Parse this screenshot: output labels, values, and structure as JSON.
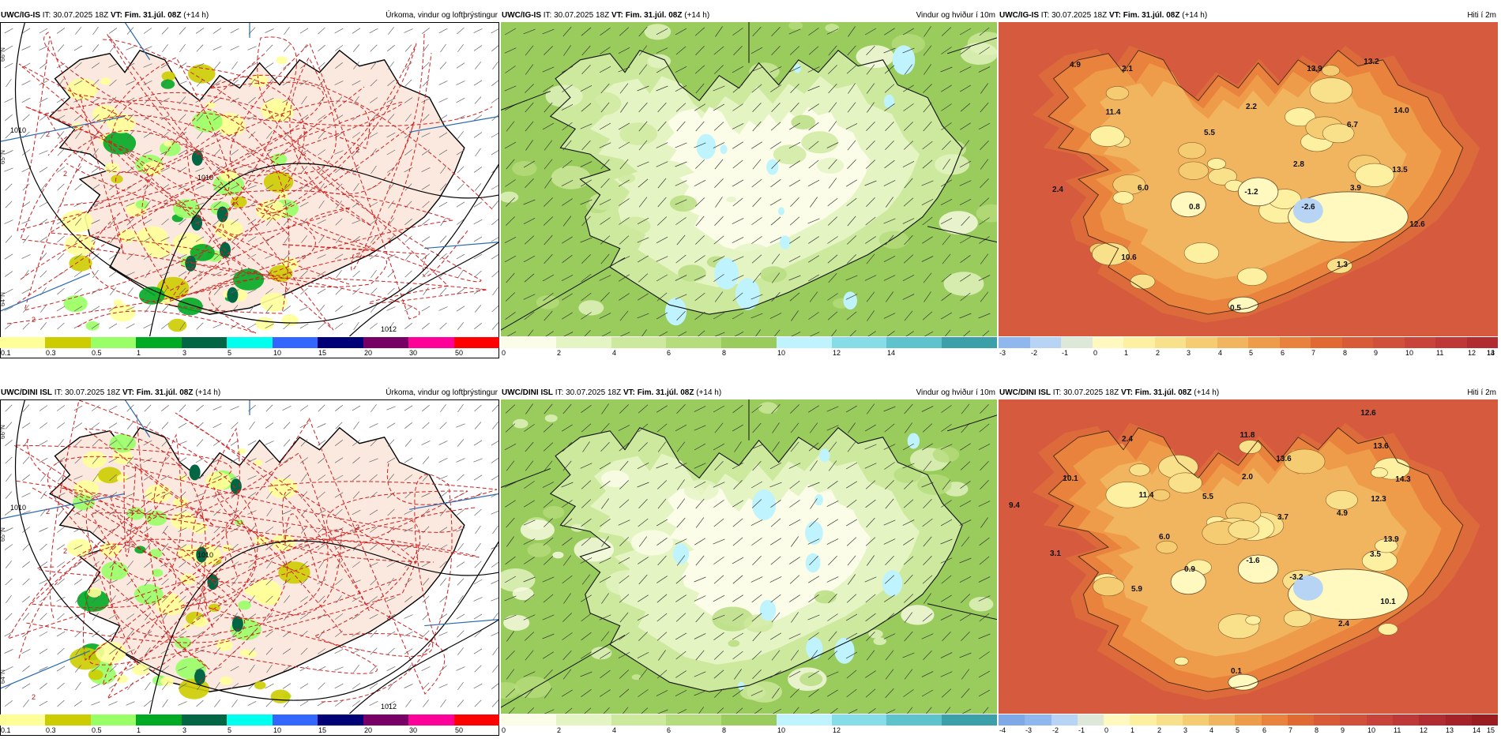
{
  "panels": [
    {
      "id": "top-precip",
      "model": "UWC/IG-IS",
      "it_label": "IT:",
      "it": "30.07.2025 18Z",
      "vt_label": "VT:",
      "vt": "Fim. 31.júl. 08Z",
      "lead": "(+14 h)",
      "title": "Úrkoma, vindur og loftþrýstingur",
      "kind": "precip",
      "colorbar": {
        "colors": [
          "#ffff99",
          "#cccc00",
          "#99ff66",
          "#00aa22",
          "#006644",
          "#00ffee",
          "#3366ff",
          "#000077",
          "#770066",
          "#ff0099",
          "#ff0000"
        ],
        "labels": [
          "0.1",
          "0.3",
          "0.5",
          "1",
          "3",
          "5",
          "10",
          "15",
          "20",
          "30",
          "50"
        ]
      },
      "isobar_labels": [
        "1010",
        "1010",
        "1012"
      ],
      "pressure_change_labels": [
        "2",
        "2",
        "2",
        "2",
        "2"
      ],
      "lat_labels": [
        "66°N",
        "65°N",
        "64°N"
      ]
    },
    {
      "id": "top-wind",
      "model": "UWC/IG-IS",
      "it_label": "IT:",
      "it": "30.07.2025 18Z",
      "vt_label": "VT:",
      "vt": "Fim. 31.júl. 08Z",
      "lead": "(+14 h)",
      "title": "Vindur og hviður í 10m",
      "kind": "wind",
      "colorbar": {
        "colors": [
          "#fbfde8",
          "#e5f4c3",
          "#cde99e",
          "#b5dc7d",
          "#99cc5c",
          "#bff4ff",
          "#86dde8",
          "#5ec3cc",
          "#3ba0a8"
        ],
        "labels": [
          "0",
          "2",
          "4",
          "6",
          "8",
          "10",
          "12",
          "14"
        ]
      }
    },
    {
      "id": "top-temp",
      "model": "UWC/IG-IS",
      "it_label": "IT:",
      "it": "30.07.2025 18Z",
      "vt_label": "VT:",
      "vt": "Fim. 31.júl. 08Z",
      "lead": "(+14 h)",
      "title": "Hiti í 2m",
      "kind": "temp",
      "colorbar": {
        "colors": [
          "#90b8ee",
          "#b7d4f5",
          "#dde8d8",
          "#fff9c0",
          "#fdf0a0",
          "#f9e08a",
          "#f5cc72",
          "#f2b55f",
          "#ee9c4a",
          "#e8823c",
          "#e06a32",
          "#d85a36",
          "#d0503a",
          "#c8443a",
          "#be3838",
          "#b02c30"
        ],
        "labels": [
          "-3",
          "-2",
          "-1",
          "0",
          "1",
          "2",
          "3",
          "4",
          "5",
          "6",
          "7",
          "8",
          "9",
          "10",
          "11",
          "12",
          "13",
          "14"
        ]
      },
      "temps": [
        {
          "v": "4.9"
        },
        {
          "v": "2.1"
        },
        {
          "v": "13.9"
        },
        {
          "v": "13.2"
        },
        {
          "v": "11.4"
        },
        {
          "v": "2.2"
        },
        {
          "v": "14.0"
        },
        {
          "v": "5.5"
        },
        {
          "v": "6.7"
        },
        {
          "v": "2.8"
        },
        {
          "v": "13.5"
        },
        {
          "v": "2.4"
        },
        {
          "v": "6.0"
        },
        {
          "v": "0.8"
        },
        {
          "v": "-1.2"
        },
        {
          "v": "-2.6"
        },
        {
          "v": "3.9"
        },
        {
          "v": "12.6"
        },
        {
          "v": "10.6"
        },
        {
          "v": "1.3"
        },
        {
          "v": "0.5"
        }
      ]
    },
    {
      "id": "bottom-precip",
      "model": "UWC/DINI ISL",
      "it_label": "IT:",
      "it": "30.07.2025 18Z",
      "vt_label": "VT:",
      "vt": "Fim. 31.júl. 08Z",
      "lead": "(+14 h)",
      "title": "Úrkoma, vindur og loftþrýstingur",
      "kind": "precip",
      "colorbar": {
        "colors": [
          "#ffff99",
          "#cccc00",
          "#99ff66",
          "#00aa22",
          "#006644",
          "#00ffee",
          "#3366ff",
          "#000077",
          "#770066",
          "#ff0099",
          "#ff0000"
        ],
        "labels": [
          "0.1",
          "0.3",
          "0.5",
          "1",
          "3",
          "5",
          "10",
          "15",
          "20",
          "30",
          "50"
        ]
      },
      "isobar_labels": [
        "1010",
        "1010",
        "1012"
      ],
      "pressure_change_labels": [
        "2",
        "2",
        "2",
        "4",
        "2"
      ],
      "lat_labels": [
        "66°N",
        "65°N",
        "64°N"
      ]
    },
    {
      "id": "bottom-wind",
      "model": "UWC/DINI ISL",
      "it_label": "IT:",
      "it": "30.07.2025 18Z",
      "vt_label": "VT:",
      "vt": "Fim. 31.júl. 08Z",
      "lead": "(+14 h)",
      "title": "Vindur og hviður í 10m",
      "kind": "wind",
      "colorbar": {
        "colors": [
          "#fbfde8",
          "#e5f4c3",
          "#cde99e",
          "#b5dc7d",
          "#99cc5c",
          "#bff4ff",
          "#86dde8",
          "#5ec3cc",
          "#3ba0a8"
        ],
        "labels": [
          "0",
          "2",
          "4",
          "6",
          "8",
          "10",
          "12"
        ]
      }
    },
    {
      "id": "bottom-temp",
      "model": "UWC/DINI ISL",
      "it_label": "IT:",
      "it": "30.07.2025 18Z",
      "vt_label": "VT:",
      "vt": "Fim. 31.júl. 08Z",
      "lead": "(+14 h)",
      "title": "Hiti í 2m",
      "kind": "temp",
      "colorbar": {
        "colors": [
          "#7fa8e6",
          "#90b8ee",
          "#b7d4f5",
          "#dde8d8",
          "#fff9c0",
          "#fdf0a0",
          "#f9e08a",
          "#f5cc72",
          "#f2b55f",
          "#ee9c4a",
          "#e8823c",
          "#e06a32",
          "#d85a36",
          "#d0503a",
          "#c8443a",
          "#be3838",
          "#b02c30",
          "#a42228",
          "#981c20"
        ],
        "labels": [
          "-4",
          "-3",
          "-2",
          "-1",
          "0",
          "1",
          "2",
          "3",
          "4",
          "5",
          "6",
          "7",
          "8",
          "9",
          "10",
          "11",
          "12",
          "13",
          "14",
          "15"
        ]
      },
      "temps": [
        {
          "v": "12.6"
        },
        {
          "v": "2.4"
        },
        {
          "v": "11.8"
        },
        {
          "v": "13.6"
        },
        {
          "v": "13.6"
        },
        {
          "v": "10.1"
        },
        {
          "v": "14.3"
        },
        {
          "v": "11.4"
        },
        {
          "v": "5.5"
        },
        {
          "v": "2.0"
        },
        {
          "v": "9.4"
        },
        {
          "v": "12.3"
        },
        {
          "v": "3.7"
        },
        {
          "v": "4.9"
        },
        {
          "v": "6.0"
        },
        {
          "v": "3.1"
        },
        {
          "v": "13.9"
        },
        {
          "v": "0.9"
        },
        {
          "v": "-1.6"
        },
        {
          "v": "3.5"
        },
        {
          "v": "-3.2"
        },
        {
          "v": "5.9"
        },
        {
          "v": "10.1"
        },
        {
          "v": "2.4"
        },
        {
          "v": "0.1"
        }
      ]
    }
  ]
}
